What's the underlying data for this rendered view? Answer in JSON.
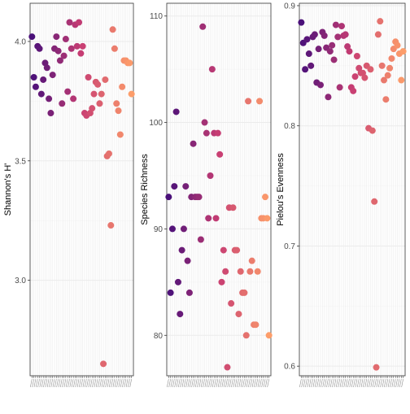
{
  "chart_data": [
    {
      "type": "scatter",
      "ylabel": "Shannon's H'",
      "ylim": [
        2.6,
        4.16
      ],
      "yticks": [
        3.0,
        3.5,
        4.0
      ],
      "ytick_labels": [
        "3.0",
        "3.5",
        "4.0"
      ],
      "grid": true,
      "legend": "none",
      "x_count": 54,
      "y": [
        4.02,
        3.85,
        3.81,
        3.98,
        3.97,
        3.78,
        3.84,
        3.91,
        3.89,
        3.76,
        3.7,
        3.86,
        3.97,
        4.02,
        3.96,
        3.92,
        3.74,
        3.94,
        4.01,
        3.79,
        4.08,
        3.97,
        3.76,
        4.07,
        3.98,
        4.08,
        3.95,
        3.98,
        3.7,
        3.69,
        3.85,
        3.7,
        3.72,
        3.78,
        3.83,
        3.82,
        3.74,
        3.78,
        2.65,
        3.84,
        3.52,
        3.53,
        3.23,
        4.05,
        3.97,
        3.74,
        3.71,
        3.61,
        3.81,
        3.92,
        3.92,
        3.91,
        3.91,
        3.78
      ]
    },
    {
      "type": "scatter",
      "ylabel": "Species Richness",
      "ylim": [
        76.2,
        111.2
      ],
      "yticks": [
        80,
        90,
        100,
        110
      ],
      "ytick_labels": [
        "80",
        "90",
        "100",
        "110"
      ],
      "grid": true,
      "legend": "none",
      "x_count": 54,
      "y": [
        93,
        84,
        90,
        94,
        101,
        85,
        82,
        88,
        90,
        94,
        87,
        84,
        93,
        98,
        93,
        93,
        93,
        89,
        109,
        100,
        99,
        91,
        95,
        105,
        99,
        91,
        99,
        97,
        85,
        88,
        86,
        77,
        92,
        83,
        92,
        88,
        88,
        82,
        86,
        84,
        84,
        80,
        102,
        86,
        87,
        81,
        81,
        86,
        102,
        91,
        91,
        93,
        91,
        80
      ]
    },
    {
      "type": "scatter",
      "ylabel": "Pielou's Evenness",
      "ylim": [
        0.592,
        0.902
      ],
      "yticks": [
        0.6,
        0.7,
        0.8,
        0.9
      ],
      "ytick_labels": [
        "0.6",
        "0.7",
        "0.8",
        "0.9"
      ],
      "grid": true,
      "legend": "none",
      "x_count": 54,
      "y": [
        0.886,
        0.869,
        0.847,
        0.872,
        0.86,
        0.85,
        0.874,
        0.876,
        0.836,
        0.864,
        0.834,
        0.878,
        0.875,
        0.865,
        0.824,
        0.862,
        0.867,
        0.855,
        0.884,
        0.874,
        0.832,
        0.883,
        0.875,
        0.876,
        0.866,
        0.862,
        0.832,
        0.829,
        0.841,
        0.858,
        0.848,
        0.844,
        0.844,
        0.84,
        0.85,
        0.798,
        0.847,
        0.796,
        0.737,
        0.599,
        0.876,
        0.887,
        0.85,
        0.838,
        0.822,
        0.842,
        0.848,
        0.856,
        0.864,
        0.87,
        0.867,
        0.86,
        0.838,
        0.862
      ]
    }
  ],
  "colors": {
    "point_start": "#4a1079",
    "point_mid": "#c83e73",
    "point_end": "#fd9d6a",
    "panel_border": "#333333",
    "grid_major": "#ebebeb",
    "grid_minor": "#f5f5f5"
  }
}
